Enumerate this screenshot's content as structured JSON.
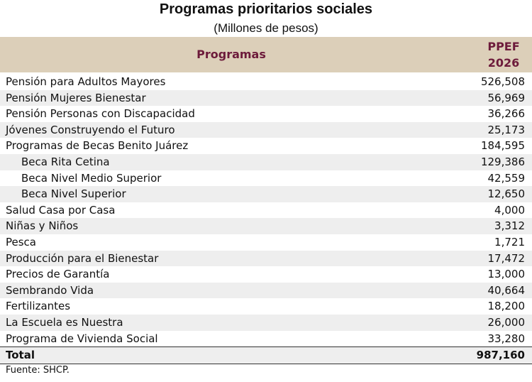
{
  "header": {
    "title": "Programas prioritarios sociales",
    "subtitle": "(Millones de pesos)"
  },
  "table": {
    "columns": [
      "Programas",
      "PPEF",
      "2026"
    ],
    "rows": [
      {
        "label": "Pensión para Adultos Mayores",
        "value": "526,508"
      },
      {
        "label": "Pensión Mujeres Bienestar",
        "value": "56,969"
      },
      {
        "label": "Pensión Personas con Discapacidad",
        "value": "36,266"
      },
      {
        "label": "Jóvenes Construyendo el Futuro",
        "value": "25,173"
      },
      {
        "label": "Programas de Becas Benito Juárez",
        "value": "184,595",
        "items": [
          {
            "label": "Beca Rita Cetina",
            "value": "129,386"
          },
          {
            "label": "Beca Nivel Medio Superior",
            "value": "42,559"
          },
          {
            "label": "Beca Nivel Superior",
            "value": "12,650"
          }
        ]
      },
      {
        "label": "Salud Casa por Casa",
        "value": "4,000"
      },
      {
        "label": "Niñas y Niños",
        "value": "3,312"
      },
      {
        "label": "Pesca",
        "value": "1,721"
      },
      {
        "label": "Producción para el Bienestar",
        "value": "17,472"
      },
      {
        "label": "Precios de Garantía",
        "value": "13,000"
      },
      {
        "label": "Sembrando Vida",
        "value": "40,664"
      },
      {
        "label": "Fertilizantes",
        "value": "18,200"
      },
      {
        "label": "La Escuela es Nuestra",
        "value": "26,000"
      },
      {
        "label": "Programa de Vivienda Social",
        "value": "33,280"
      }
    ],
    "total": {
      "label": "Total",
      "value": "987,160"
    }
  },
  "footer": {
    "source": "Fuente: SHCP."
  }
}
